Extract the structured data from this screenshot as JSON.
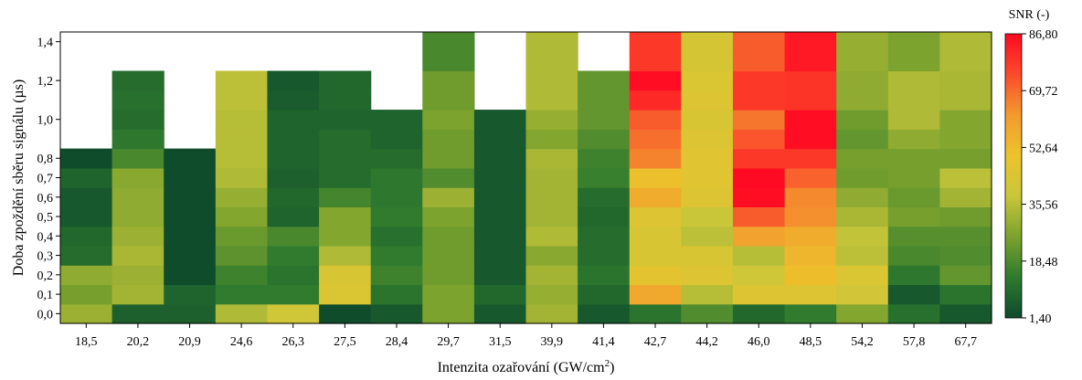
{
  "chart_data": {
    "type": "heatmap",
    "title": "",
    "xlabel": "Intenzita ozařování (GW/cm²)",
    "ylabel": "Doba zpoždění sběru signálu (µs)",
    "x_categories": [
      "18,5",
      "20,2",
      "20,9",
      "24,6",
      "26,3",
      "27,5",
      "28,4",
      "29,7",
      "31,5",
      "39,9",
      "41,4",
      "42,7",
      "44,2",
      "46,0",
      "48,5",
      "54,2",
      "57,8",
      "67,7"
    ],
    "y_categories": [
      "0,0",
      "0,1",
      "0,2",
      "0,3",
      "0,4",
      "0,5",
      "0,6",
      "0,7",
      "0,8",
      "0,9",
      "1,0",
      "1,1",
      "1,2",
      "1,3",
      "1,4"
    ],
    "y_tick_labels": [
      "0,0",
      "0,1",
      "0,2",
      "0,3",
      "0,4",
      "0,5",
      "0,6",
      "0,7",
      "0,8",
      "1,0",
      "1,2",
      "1,4"
    ],
    "y_tick_values": [
      0.0,
      0.1,
      0.2,
      0.3,
      0.4,
      0.5,
      0.6,
      0.7,
      0.8,
      1.0,
      1.2,
      1.4
    ],
    "colorbar": {
      "title": "SNR (-)",
      "min": 1.4,
      "max": 86.8,
      "tick_labels": [
        "86,80",
        "69,72",
        "52,64",
        "35,56",
        "18,48",
        "1,40"
      ],
      "tick_values": [
        86.8,
        69.72,
        52.64,
        35.56,
        18.48,
        1.4
      ],
      "colors": [
        "#0d4a2c",
        "#2f7a2e",
        "#7ba22e",
        "#c9c63a",
        "#ecc32c",
        "#f39a2e",
        "#fb4b2c",
        "#ff0a22"
      ]
    },
    "values": [
      [
        31,
        7,
        7,
        34,
        40,
        2,
        5,
        26,
        5,
        32,
        5,
        12,
        19,
        9,
        14,
        27,
        11,
        5
      ],
      [
        25,
        32,
        8,
        14,
        14,
        44,
        12,
        26,
        9,
        30,
        9,
        58,
        35,
        45,
        45,
        41,
        5,
        12
      ],
      [
        29,
        31,
        2,
        16,
        12,
        43,
        16,
        24,
        5,
        32,
        12,
        47,
        45,
        40,
        52,
        44,
        13,
        22
      ],
      [
        10,
        33,
        2,
        21,
        14,
        34,
        14,
        24,
        5,
        28,
        10,
        43,
        43,
        35,
        54,
        36,
        18,
        19
      ],
      [
        9,
        31,
        2,
        23,
        18,
        27,
        11,
        24,
        5,
        34,
        10,
        43,
        36,
        60,
        57,
        37,
        20,
        20
      ],
      [
        5,
        29,
        2,
        27,
        8,
        27,
        14,
        26,
        5,
        32,
        9,
        45,
        38,
        72,
        64,
        33,
        25,
        24
      ],
      [
        5,
        29,
        2,
        30,
        9,
        17,
        13,
        31,
        5,
        32,
        10,
        57,
        45,
        86,
        65,
        29,
        23,
        32
      ],
      [
        8,
        28,
        2,
        34,
        7,
        10,
        13,
        19,
        5,
        32,
        15,
        51,
        46,
        87,
        71,
        24,
        25,
        36
      ],
      [
        2,
        18,
        2,
        35,
        8,
        10,
        10,
        24,
        5,
        33,
        16,
        66,
        46,
        78,
        78,
        25,
        25,
        25
      ],
      [
        null,
        13,
        null,
        35,
        8,
        10,
        8,
        24,
        5,
        27,
        19,
        69,
        45,
        73,
        86,
        22,
        29,
        27
      ],
      [
        null,
        10,
        null,
        35,
        8,
        8,
        8,
        26,
        5,
        30,
        22,
        72,
        43,
        68,
        86,
        24,
        34,
        27
      ],
      [
        null,
        11,
        null,
        36,
        6,
        9,
        null,
        24,
        null,
        34,
        22,
        81,
        45,
        78,
        79,
        29,
        34,
        33
      ],
      [
        null,
        10,
        null,
        36,
        5,
        9,
        null,
        24,
        null,
        34,
        22,
        86,
        44,
        78,
        79,
        29,
        34,
        33
      ],
      [
        null,
        null,
        null,
        null,
        null,
        null,
        null,
        18,
        null,
        34,
        null,
        78,
        42,
        72,
        84,
        30,
        26,
        34
      ],
      [
        null,
        null,
        null,
        null,
        null,
        null,
        null,
        18,
        null,
        34,
        null,
        78,
        42,
        72,
        84,
        30,
        26,
        34
      ]
    ]
  }
}
